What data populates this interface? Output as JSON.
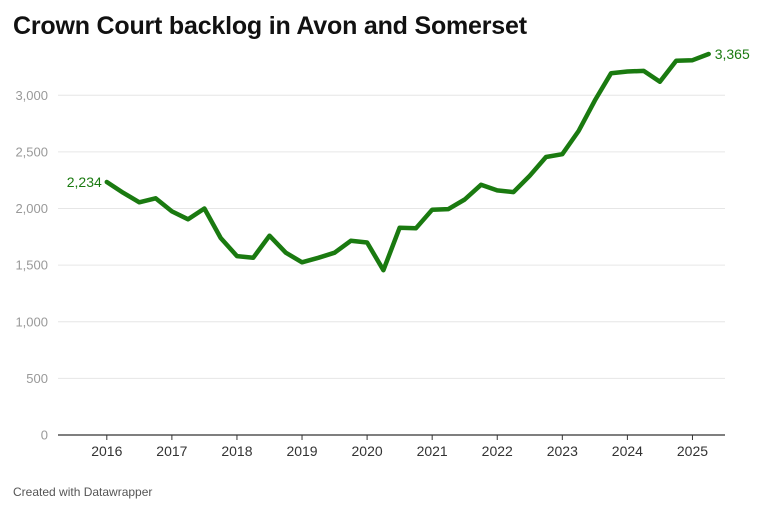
{
  "title": "Crown Court backlog in Avon and Somerset",
  "footer": {
    "credit": "Created with Datawrapper"
  },
  "colors": {
    "line": "#1a7a10",
    "grid": "#e6e6e6",
    "axis": "#333333"
  },
  "chart_data": {
    "type": "line",
    "title": "Crown Court backlog in Avon and Somerset",
    "xlabel": "",
    "ylabel": "",
    "xlim": [
      2015.25,
      2025.5
    ],
    "ylim": [
      0,
      3400
    ],
    "grid": true,
    "legend": "none",
    "x_ticks": [
      {
        "value": 2016,
        "label": "2016"
      },
      {
        "value": 2017,
        "label": "2017"
      },
      {
        "value": 2018,
        "label": "2018"
      },
      {
        "value": 2019,
        "label": "2019"
      },
      {
        "value": 2020,
        "label": "2020"
      },
      {
        "value": 2021,
        "label": "2021"
      },
      {
        "value": 2022,
        "label": "2022"
      },
      {
        "value": 2023,
        "label": "2023"
      },
      {
        "value": 2024,
        "label": "2024"
      },
      {
        "value": 2025,
        "label": "2025"
      }
    ],
    "y_ticks": [
      {
        "value": 0,
        "label": "0"
      },
      {
        "value": 500,
        "label": "500"
      },
      {
        "value": 1000,
        "label": "1,000"
      },
      {
        "value": 1500,
        "label": "1,500"
      },
      {
        "value": 2000,
        "label": "2,000"
      },
      {
        "value": 2500,
        "label": "2,500"
      },
      {
        "value": 3000,
        "label": "3,000"
      }
    ],
    "series": [
      {
        "x": [
          2016.0,
          2016.25,
          2016.5,
          2016.75,
          2017.0,
          2017.25,
          2017.5,
          2017.75,
          2018.0,
          2018.25,
          2018.5,
          2018.75,
          2019.0,
          2019.25,
          2019.5,
          2019.75,
          2020.0,
          2020.25,
          2020.5,
          2020.75,
          2021.0,
          2021.25,
          2021.5,
          2021.75,
          2022.0,
          2022.25,
          2022.5,
          2022.75,
          2023.0,
          2023.25,
          2023.5,
          2023.75,
          2024.0,
          2024.25,
          2024.5,
          2024.75,
          2025.0,
          2025.25
        ],
        "y": [
          2234,
          2140,
          2055,
          2090,
          1975,
          1905,
          2000,
          1740,
          1580,
          1565,
          1760,
          1610,
          1525,
          1565,
          1610,
          1715,
          1700,
          1455,
          1830,
          1825,
          1990,
          1995,
          2080,
          2210,
          2160,
          2145,
          2290,
          2455,
          2480,
          2685,
          2955,
          3195,
          3210,
          3215,
          3120,
          3305,
          3310,
          3365
        ]
      }
    ],
    "annotations": [
      {
        "label": "2,234",
        "x": 2016.0,
        "y": 2234,
        "side": "left"
      },
      {
        "label": "3,365",
        "x": 2025.25,
        "y": 3365,
        "side": "right"
      }
    ]
  }
}
